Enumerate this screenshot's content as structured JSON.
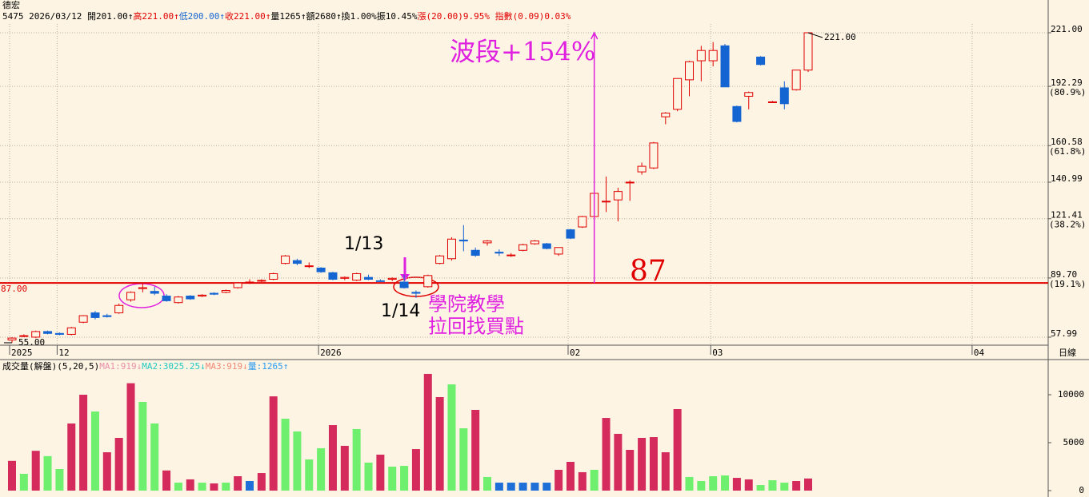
{
  "header": {
    "name": "德宏",
    "quote": [
      {
        "text": "5475 2026/03/12 開201.00↑",
        "color": "#000000"
      },
      {
        "text": "高221.00↑",
        "color": "#e00000"
      },
      {
        "text": "低200.00↑",
        "color": "#1464d2"
      },
      {
        "text": "收221.00↑",
        "color": "#e00000"
      },
      {
        "text": "量1265↑額2680↑換1.00%振10.45%",
        "color": "#000000"
      },
      {
        "text": "漲(20.00)9.95% 指數(0.09)0.03%",
        "color": "#e00000"
      }
    ]
  },
  "chart_data": [
    {
      "type": "candlestick",
      "ohlc": [
        [
          56.5,
          58,
          55,
          57.5
        ],
        [
          58.5,
          59.5,
          58,
          58.8
        ],
        [
          58,
          61.5,
          57.5,
          61
        ],
        [
          61,
          61.5,
          59.5,
          60
        ],
        [
          60,
          60.5,
          59,
          59.5
        ],
        [
          59.5,
          63.5,
          59,
          63
        ],
        [
          66,
          69.8,
          65.5,
          69.5
        ],
        [
          71,
          72,
          67.5,
          68.5
        ],
        [
          69.5,
          70.5,
          68.5,
          69
        ],
        [
          71,
          76,
          70.5,
          75
        ],
        [
          78,
          82.5,
          77,
          82
        ],
        [
          84,
          87,
          82,
          84.5
        ],
        [
          82.5,
          85,
          80.5,
          81.5
        ],
        [
          80,
          81,
          77,
          77.5
        ],
        [
          76.5,
          80,
          76,
          79.5
        ],
        [
          80,
          80.5,
          78,
          78.5
        ],
        [
          80,
          81,
          79.5,
          80.5
        ],
        [
          81.5,
          82,
          80.5,
          81
        ],
        [
          82,
          83.5,
          81.5,
          83
        ],
        [
          84.5,
          87.5,
          84,
          87
        ],
        [
          87.5,
          89,
          86.5,
          87.5
        ],
        [
          88,
          89,
          87.5,
          88.4
        ],
        [
          89,
          92.5,
          88.5,
          92
        ],
        [
          97.5,
          102,
          97,
          101.5
        ],
        [
          99,
          100,
          96.5,
          97.5
        ],
        [
          96,
          98,
          95,
          96.2
        ],
        [
          95,
          95.5,
          92.5,
          93
        ],
        [
          92.5,
          93,
          88.5,
          89
        ],
        [
          89.5,
          90.5,
          88.5,
          90
        ],
        [
          88.5,
          92.5,
          88,
          92
        ],
        [
          90,
          91.5,
          88.5,
          89
        ],
        [
          88.2,
          89,
          87.5,
          88
        ],
        [
          89,
          90,
          88,
          89.5
        ],
        [
          87.5,
          91.5,
          84,
          84.5
        ],
        [
          82,
          83,
          79,
          81.5
        ],
        [
          85,
          91.5,
          84.5,
          91
        ],
        [
          97.5,
          102,
          97,
          101.5
        ],
        [
          100,
          111.5,
          99,
          110.5
        ],
        [
          110,
          118,
          104,
          109.5
        ],
        [
          104.5,
          106,
          101,
          101.8
        ],
        [
          108.5,
          110,
          107,
          109.5
        ],
        [
          103.5,
          105,
          101.5,
          103
        ],
        [
          102,
          103,
          101,
          102
        ],
        [
          104.5,
          108,
          104,
          107.5
        ],
        [
          108,
          110,
          107.5,
          109.5
        ],
        [
          108,
          108.5,
          105,
          105.5
        ],
        [
          102.5,
          106,
          101.5,
          106
        ],
        [
          115.5,
          116,
          110.5,
          111
        ],
        [
          117,
          123,
          116.5,
          122.6
        ],
        [
          122.6,
          135.5,
          122,
          135
        ],
        [
          130.5,
          144,
          125,
          130.8
        ],
        [
          131.5,
          138,
          120,
          136
        ],
        [
          141,
          142,
          131,
          141
        ],
        [
          146.5,
          151.5,
          145,
          149.5
        ],
        [
          148.6,
          162.5,
          148,
          162
        ],
        [
          176,
          178.5,
          172,
          178
        ],
        [
          180,
          196.5,
          179,
          196.5
        ],
        [
          195.8,
          206,
          187,
          205.5
        ],
        [
          206,
          214,
          195,
          211.5
        ],
        [
          206,
          216,
          203,
          211.5
        ],
        [
          214,
          215,
          192,
          192
        ],
        [
          181.5,
          182,
          173,
          173.5
        ],
        [
          187,
          189.5,
          180,
          189
        ],
        [
          208,
          208.5,
          203.5,
          204
        ],
        [
          184,
          184.5,
          183.5,
          184
        ],
        [
          191.5,
          195,
          180,
          183
        ],
        [
          190.5,
          201,
          190,
          201
        ],
        [
          201,
          221,
          200,
          221
        ]
      ],
      "up_color": "#e00000",
      "down_color": "#1464d2",
      "ylim": [
        53.7,
        225.7
      ],
      "yticks": [
        {
          "value": 221,
          "label": "221.00"
        },
        192.29,
        160.58,
        140.99,
        121.41,
        {
          "value": 89.7,
          "label": "89.70"
        },
        57.99
      ],
      "ytick_notes": [
        {
          "value": 192.29,
          "label": "(80.9%)"
        },
        {
          "value": 160.58,
          "label": "(61.8%)"
        },
        {
          "value": 121.41,
          "label": "(38.2%)"
        },
        {
          "value": 89.7,
          "label": "(19.1%)"
        }
      ],
      "x_labels": [
        {
          "label": "2025",
          "index": 0
        },
        {
          "label": "12",
          "index": 4
        },
        {
          "label": "2026",
          "index": 26
        },
        {
          "label": "02",
          "index": 47
        },
        {
          "label": "03",
          "index": 59
        },
        {
          "label": "04",
          "index": 81
        }
      ],
      "period": "日線",
      "grid": true,
      "hline": {
        "value": 87,
        "label": "87.00",
        "color": "#e00000"
      },
      "high_label": {
        "value": 221,
        "label": "221.00"
      },
      "low_label": {
        "value": 55,
        "label": "55.00"
      },
      "annotations": [
        "1/13",
        "1/14",
        "波段+154%",
        "87",
        "學院教學",
        "拉回找買點"
      ]
    },
    {
      "type": "bar",
      "title": "成交量(解盤)(5,20,5)",
      "legend": [
        {
          "name": "MA1:919↓",
          "color": "#e890a8"
        },
        {
          "name": "MA2:3025.25↓",
          "color": "#22c8c0"
        },
        {
          "name": "MA3:919↓",
          "color": "#f08878"
        },
        {
          "name": "量:1265↑",
          "color": "#2a9af0"
        }
      ],
      "values": [
        3100,
        1750,
        4150,
        3600,
        2250,
        7000,
        10000,
        8250,
        4000,
        5500,
        11200,
        9250,
        7000,
        2100,
        830,
        1170,
        830,
        750,
        830,
        1500,
        1000,
        1830,
        9830,
        7500,
        6170,
        3250,
        4420,
        6830,
        4670,
        6420,
        2920,
        3750,
        2500,
        2580,
        4330,
        12170,
        9750,
        11080,
        6500,
        8420,
        1420,
        830,
        830,
        830,
        830,
        830,
        2170,
        3000,
        1920,
        2170,
        7580,
        5920,
        4250,
        5500,
        5580,
        4000,
        8500,
        1420,
        1000,
        1500,
        1580,
        1330,
        1170,
        580,
        1080,
        830,
        1000,
        1265
      ],
      "colors": [
        "#d42a5c",
        "#6ef06e",
        "#d42a5c",
        "#6ef06e",
        "#6ef06e",
        "#d42a5c",
        "#d42a5c",
        "#6ef06e",
        "#d42a5c",
        "#d42a5c",
        "#d42a5c",
        "#6ef06e",
        "#6ef06e",
        "#d42a5c",
        "#6ef06e",
        "#d42a5c",
        "#6ef06e",
        "#d42a5c",
        "#6ef06e",
        "#d42a5c",
        "#1e6fd8",
        "#d42a5c",
        "#d42a5c",
        "#6ef06e",
        "#6ef06e",
        "#6ef06e",
        "#6ef06e",
        "#d42a5c",
        "#d42a5c",
        "#6ef06e",
        "#6ef06e",
        "#d42a5c",
        "#6ef06e",
        "#6ef06e",
        "#d42a5c",
        "#d42a5c",
        "#d42a5c",
        "#6ef06e",
        "#6ef06e",
        "#d42a5c",
        "#6ef06e",
        "#1e6fd8",
        "#1e6fd8",
        "#1e6fd8",
        "#1e6fd8",
        "#1e6fd8",
        "#d42a5c",
        "#d42a5c",
        "#d42a5c",
        "#6ef06e",
        "#d42a5c",
        "#d42a5c",
        "#d42a5c",
        "#d42a5c",
        "#d42a5c",
        "#d42a5c",
        "#d42a5c",
        "#6ef06e",
        "#6ef06e",
        "#6ef06e",
        "#6ef06e",
        "#d42a5c",
        "#d42a5c",
        "#6ef06e",
        "#6ef06e",
        "#6ef06e",
        "#d42a5c",
        "#d42a5c"
      ],
      "ylim": [
        -500,
        13500
      ],
      "yticks": [
        0,
        5000,
        10000
      ]
    }
  ]
}
